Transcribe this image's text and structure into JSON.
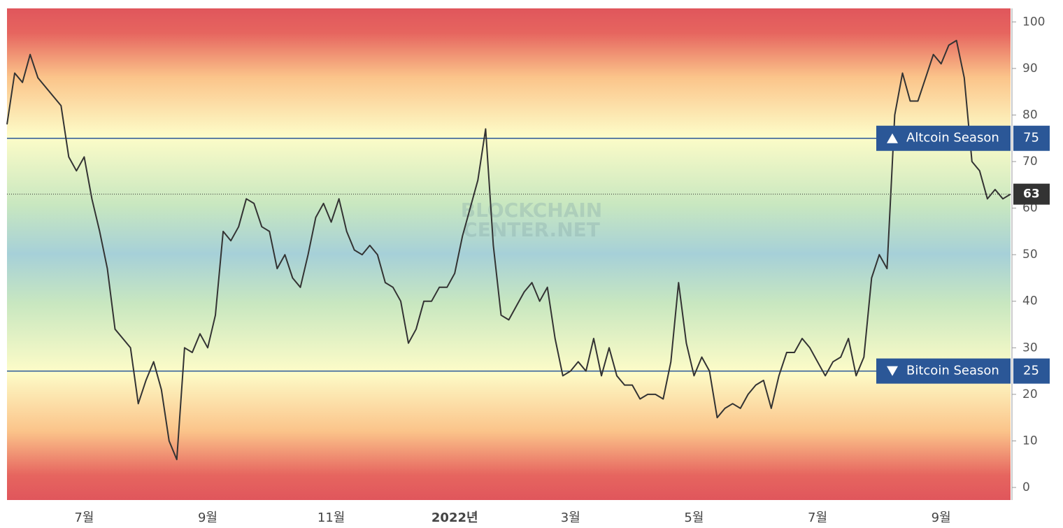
{
  "chart_data": {
    "type": "line",
    "watermark": [
      "BLOCKCHAIN",
      "CENTER.NET"
    ],
    "categories": [
      null,
      null,
      null,
      null,
      null,
      null,
      null,
      null,
      null,
      null,
      "7월",
      null,
      null,
      null,
      null,
      null,
      null,
      null,
      null,
      null,
      null,
      null,
      null,
      null,
      null,
      null,
      "9월",
      null,
      null,
      null,
      null,
      null,
      null,
      null,
      null,
      null,
      null,
      null,
      null,
      null,
      null,
      null,
      "11월",
      null,
      null,
      null,
      null,
      null,
      null,
      null,
      null,
      null,
      null,
      null,
      null,
      null,
      null,
      null,
      "2022년",
      null,
      null,
      null,
      null,
      null,
      null,
      null,
      null,
      null,
      null,
      null,
      null,
      null,
      null,
      "3월",
      null,
      null,
      null,
      null,
      null,
      null,
      null,
      null,
      null,
      null,
      null,
      null,
      null,
      null,
      null,
      "5월",
      null,
      null,
      null,
      null,
      null,
      null,
      null,
      null,
      null,
      null,
      null,
      null,
      null,
      null,
      null,
      "7월",
      null,
      null,
      null,
      null,
      null,
      null,
      null,
      null,
      null,
      null,
      null,
      null,
      null,
      null,
      null,
      "9월",
      null,
      null,
      null,
      null,
      null,
      null,
      null,
      null,
      null
    ],
    "bold_categories": [
      58
    ],
    "series": [
      {
        "color": "#333333",
        "values": [
          78,
          89,
          87,
          93,
          88,
          86,
          84,
          82,
          71,
          68,
          71,
          62,
          55,
          47,
          34,
          32,
          30,
          18,
          23,
          27,
          21,
          10,
          6,
          30,
          29,
          33,
          30,
          37,
          55,
          53,
          56,
          62,
          61,
          56,
          55,
          47,
          50,
          45,
          43,
          50,
          58,
          61,
          57,
          62,
          55,
          51,
          50,
          52,
          50,
          44,
          43,
          40,
          31,
          34,
          40,
          40,
          43,
          43,
          46,
          54,
          60,
          66,
          77,
          52,
          37,
          36,
          39,
          42,
          44,
          40,
          43,
          32,
          24,
          25,
          27,
          25,
          32,
          24,
          30,
          24,
          22,
          22,
          19,
          20,
          20,
          19,
          27,
          44,
          31,
          24,
          28,
          25,
          15,
          17,
          18,
          17,
          20,
          22,
          23,
          17,
          24,
          29,
          29,
          32,
          30,
          27,
          24,
          27,
          28,
          32,
          24,
          28,
          45,
          50,
          47,
          80,
          89,
          83,
          83,
          88,
          93,
          91,
          95,
          96,
          88,
          70,
          68,
          62,
          64,
          62,
          63
        ]
      }
    ],
    "ylim": [
      -2.7,
      102.9
    ],
    "yticks": [
      0,
      10,
      20,
      30,
      40,
      50,
      60,
      70,
      80,
      90,
      100
    ],
    "thresholds": [
      {
        "label": "Altcoin Season",
        "value": 75,
        "color": "#2b5797"
      },
      {
        "label": "Bitcoin Season",
        "value": 25,
        "color": "#2b5797"
      }
    ],
    "current": 63
  }
}
